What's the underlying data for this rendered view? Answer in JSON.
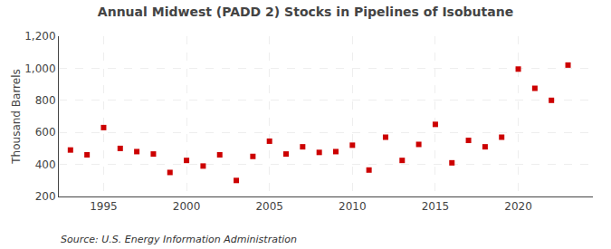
{
  "chart_data": {
    "type": "scatter",
    "title": "Annual Midwest (PADD 2) Stocks in Pipelines of Isobutane",
    "ylabel": "Thousand Barrels",
    "annotations": [
      "Source: U.S. Energy Information Administration"
    ],
    "x": [
      1993,
      1994,
      1995,
      1996,
      1997,
      1998,
      1999,
      2000,
      2001,
      2002,
      2003,
      2004,
      2005,
      2006,
      2007,
      2008,
      2009,
      2010,
      2011,
      2012,
      2013,
      2014,
      2015,
      2016,
      2017,
      2018,
      2019,
      2020,
      2021,
      2022,
      2023
    ],
    "values": [
      490,
      460,
      630,
      500,
      480,
      465,
      350,
      425,
      390,
      460,
      300,
      450,
      545,
      465,
      510,
      475,
      480,
      520,
      365,
      570,
      425,
      525,
      650,
      410,
      550,
      510,
      570,
      995,
      875,
      800,
      1020
    ],
    "color": "#cc0000",
    "marker": "square",
    "xlim": [
      1992.3,
      2024.5
    ],
    "xticks": [
      1995,
      2000,
      2005,
      2010,
      2015,
      2020
    ],
    "ylim": [
      200,
      1200
    ],
    "yticks": [
      200,
      400,
      600,
      800,
      {
        "value": 1000,
        "label": "1,000"
      },
      {
        "value": 1200,
        "label": "1,200"
      }
    ],
    "grid": true
  }
}
